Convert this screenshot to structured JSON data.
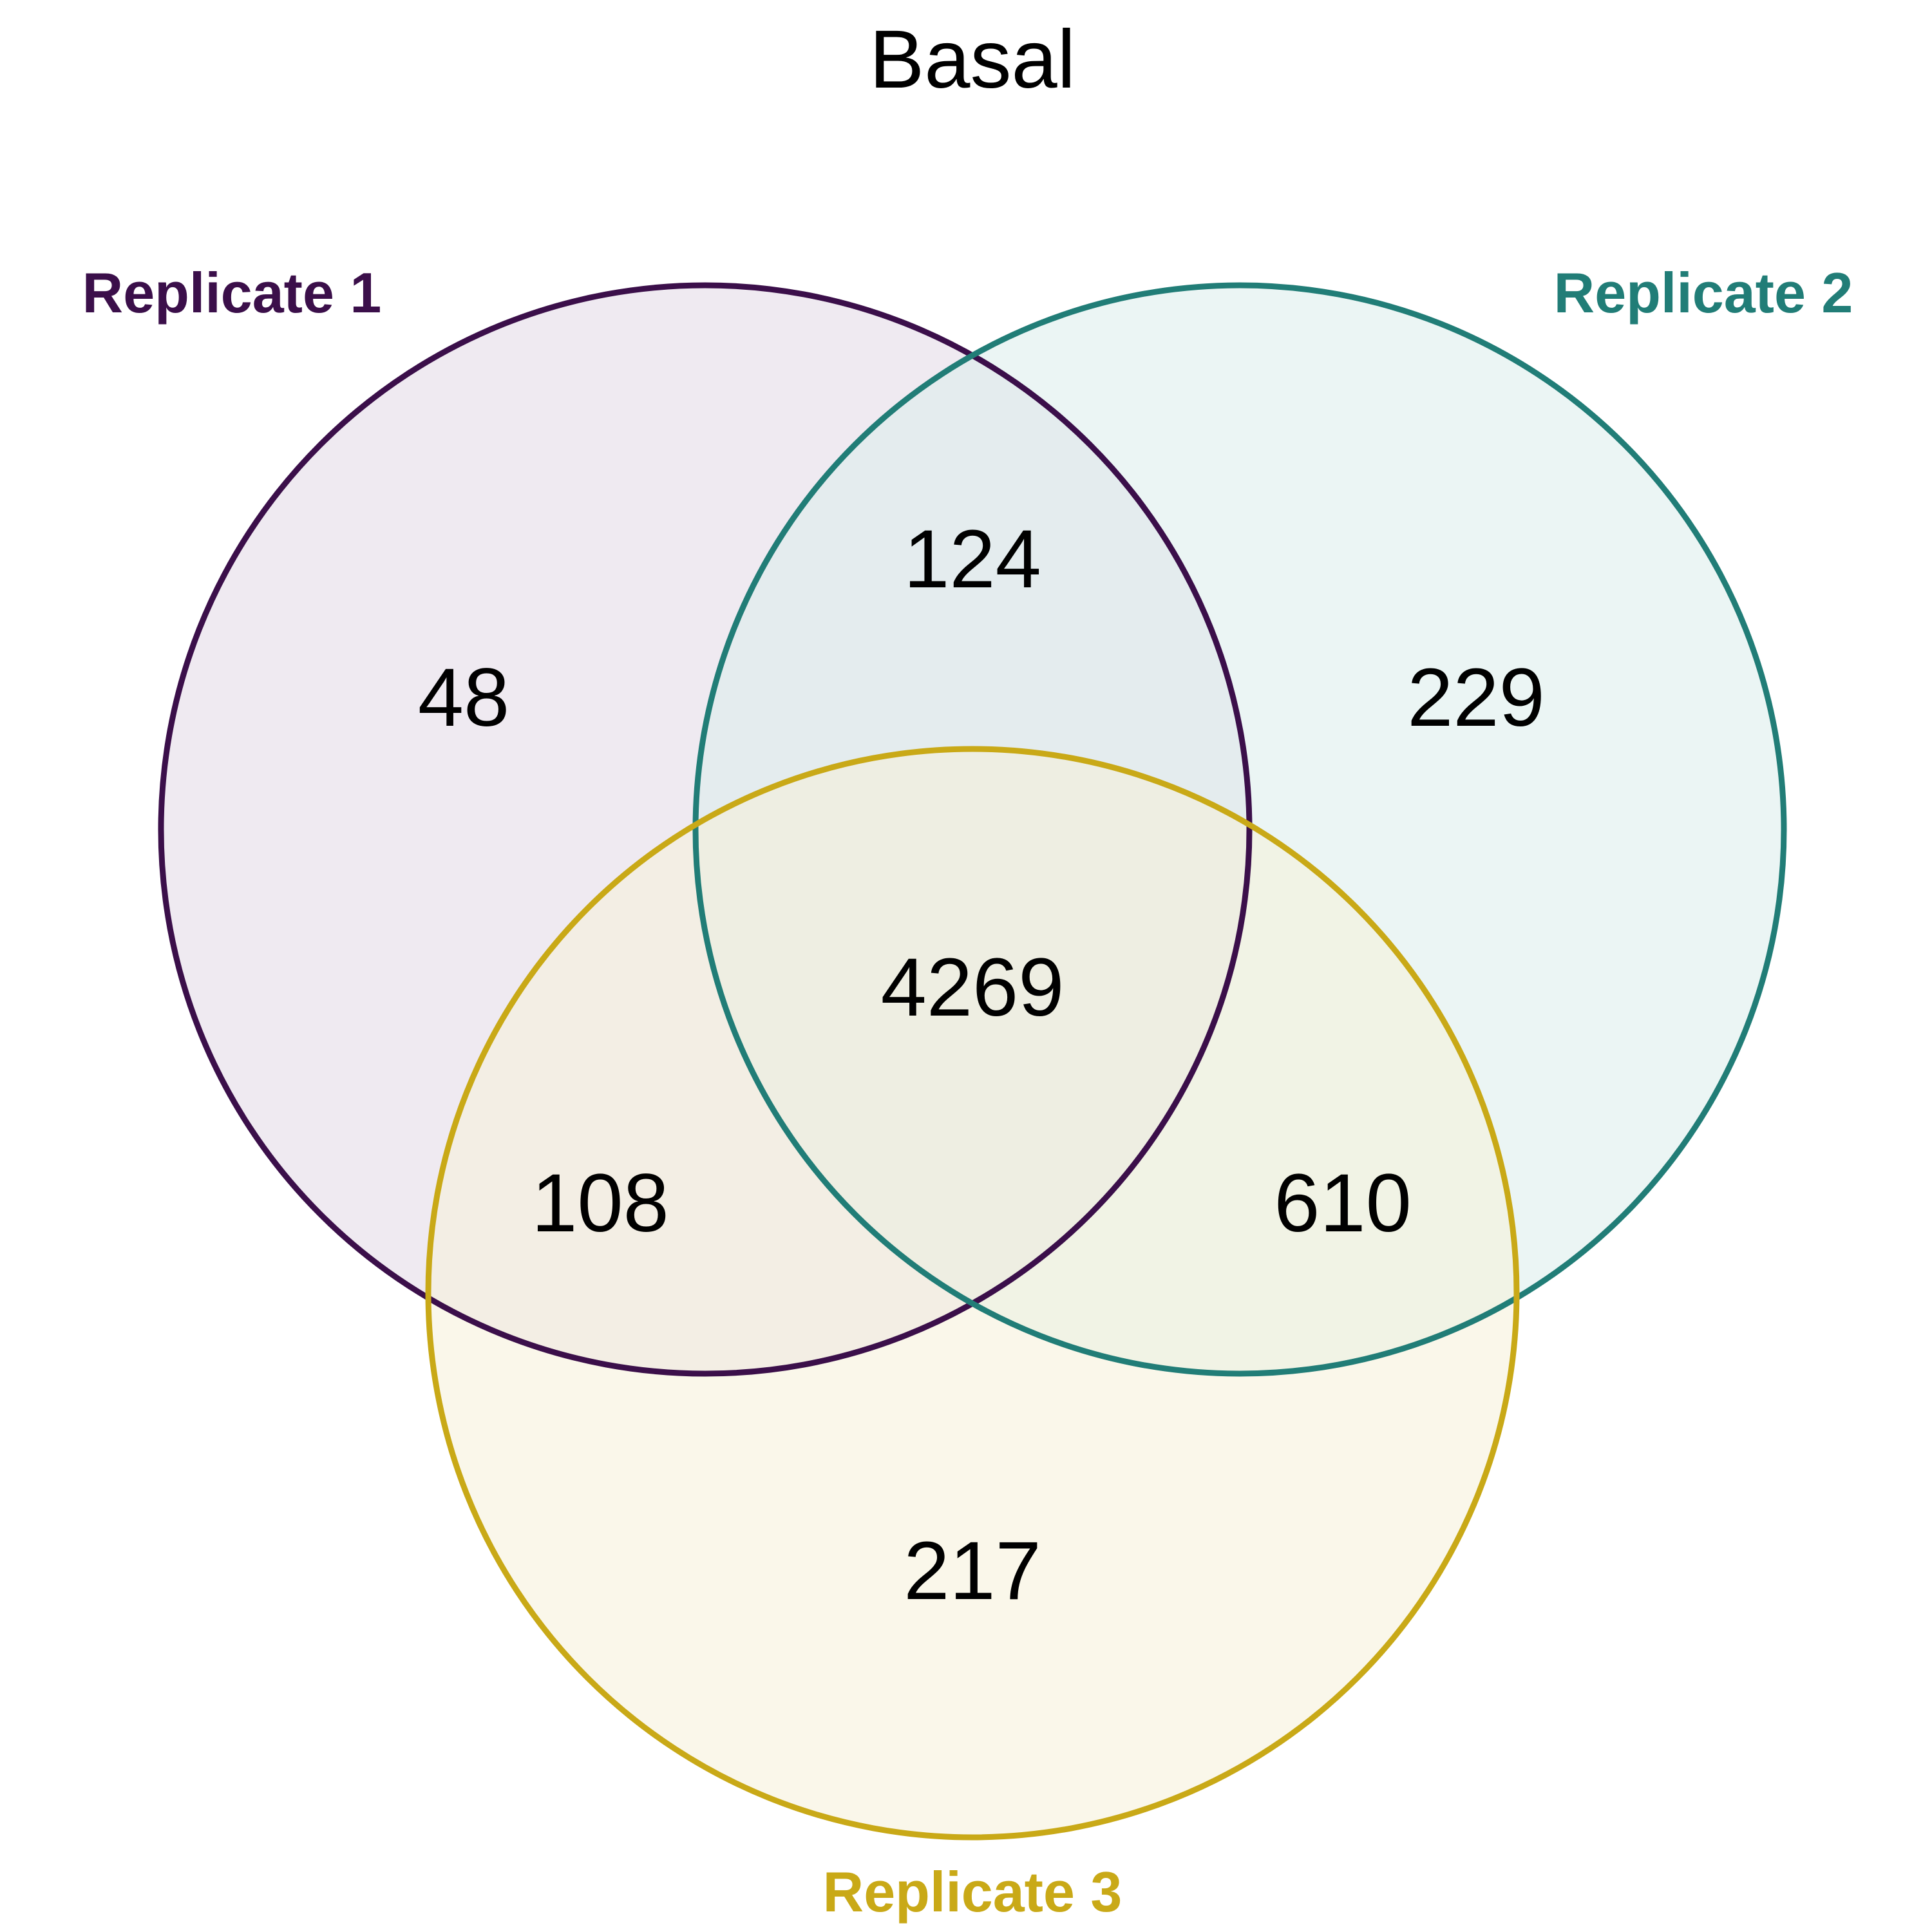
{
  "title": "Basal",
  "sets": [
    {
      "id": "r1",
      "label": "Replicate 1",
      "color": "#3b0f4a",
      "fill": "#e2d8e5"
    },
    {
      "id": "r2",
      "label": "Replicate 2",
      "color": "#217d77",
      "fill": "#dbeceb"
    },
    {
      "id": "r3",
      "label": "Replicate 3",
      "color": "#c9a917",
      "fill": "#f6f1d8"
    }
  ],
  "regions": {
    "r1_only": "48",
    "r2_only": "229",
    "r3_only": "217",
    "r1_r2": "124",
    "r1_r3": "108",
    "r2_r3": "610",
    "r1_r2_r3": "4269"
  }
}
